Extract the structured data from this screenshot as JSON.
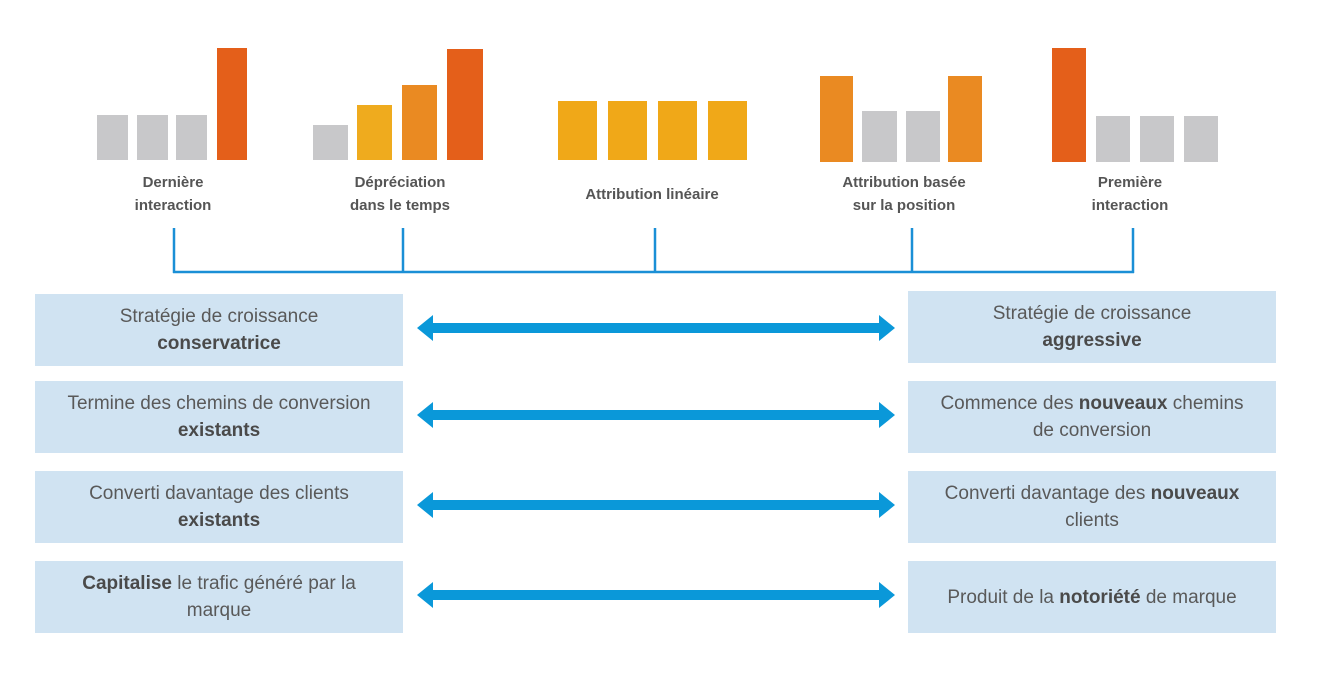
{
  "models": [
    {
      "lines": [
        "Dernière",
        "interaction"
      ]
    },
    {
      "lines": [
        "Dépréciation",
        "dans le temps"
      ]
    },
    {
      "lines": [
        "Attribution linéaire"
      ]
    },
    {
      "lines": [
        "Attribution basée",
        "sur la position"
      ]
    },
    {
      "lines": [
        "Première",
        "interaction"
      ]
    }
  ],
  "rows": [
    {
      "left": [
        [
          {
            "text": "Stratégie de croissance"
          }
        ],
        [
          {
            "text": "conservatrice",
            "bold": true
          }
        ]
      ],
      "right": [
        [
          {
            "text": "Stratégie de croissance"
          }
        ],
        [
          {
            "text": "aggressive",
            "bold": true
          }
        ]
      ]
    },
    {
      "left": [
        [
          {
            "text": "Termine des chemins de conversion"
          }
        ],
        [
          {
            "text": "existants",
            "bold": true
          }
        ]
      ],
      "right": [
        [
          {
            "text": "Commence des "
          },
          {
            "text": "nouveaux",
            "bold": true
          },
          {
            "text": " chemins"
          }
        ],
        [
          {
            "text": "de conversion"
          }
        ]
      ]
    },
    {
      "left": [
        [
          {
            "text": "Converti davantage des clients"
          }
        ],
        [
          {
            "text": "existants",
            "bold": true
          }
        ]
      ],
      "right": [
        [
          {
            "text": "Converti davantage des "
          },
          {
            "text": "nouveaux",
            "bold": true
          }
        ],
        [
          {
            "text": "clients"
          }
        ]
      ]
    },
    {
      "left": [
        [
          {
            "text": "Capitalise",
            "bold": true
          },
          {
            "text": " le trafic généré par la"
          }
        ],
        [
          {
            "text": "marque"
          }
        ]
      ],
      "right": [
        [
          {
            "text": "Produit de la "
          },
          {
            "text": "notoriété",
            "bold": true
          },
          {
            "text": " de marque"
          }
        ]
      ]
    }
  ]
}
